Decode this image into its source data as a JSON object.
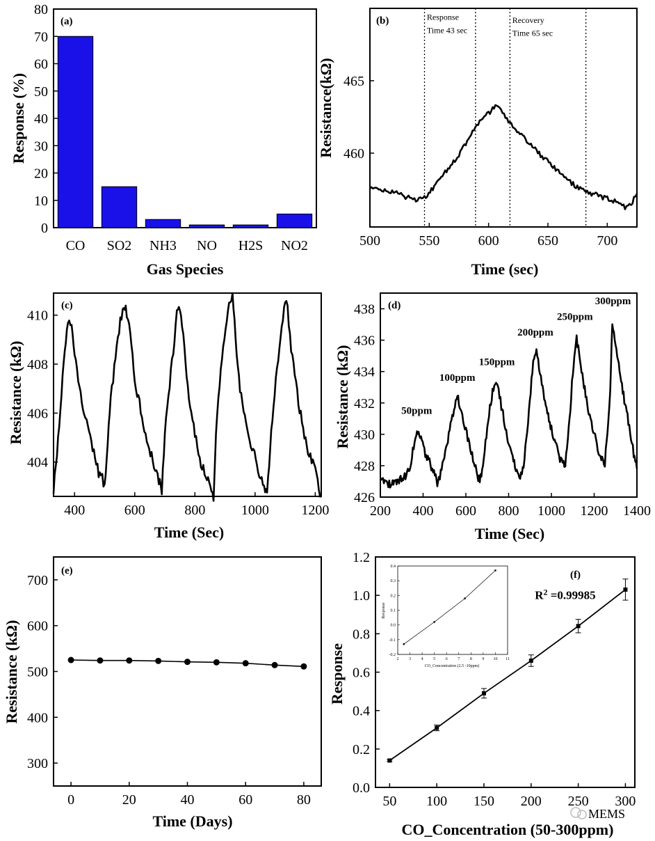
{
  "watermark": "MEMS",
  "chart_data": [
    {
      "panel": "(a)",
      "type": "bar",
      "categories": [
        "CO",
        "SO2",
        "NH3",
        "NO",
        "H2S",
        "NO2"
      ],
      "values": [
        70,
        15,
        3,
        1,
        1,
        5
      ],
      "xlabel": "Gas Species",
      "ylabel": "Response (%)",
      "ylim": [
        0,
        80
      ],
      "yticks": [
        0,
        10,
        20,
        30,
        40,
        50,
        60,
        70,
        80
      ],
      "bar_color": "#1a10e8"
    },
    {
      "panel": "(b)",
      "type": "line",
      "xlabel": "Time (sec)",
      "ylabel": "Resistance(kΩ)",
      "xlim": [
        500,
        725
      ],
      "ylim": [
        454.9,
        470.0
      ],
      "xticks": [
        500,
        550,
        600,
        650,
        700
      ],
      "yticks": [
        460,
        465
      ],
      "series": [
        {
          "x": [
            500,
            510,
            520,
            530,
            540,
            546,
            560,
            575,
            590,
            600,
            608,
            618,
            630,
            645,
            660,
            670,
            682,
            695,
            705,
            715,
            720,
            725
          ],
          "y": [
            457.6,
            457.5,
            457.3,
            457.0,
            456.7,
            456.9,
            458.3,
            459.9,
            461.9,
            462.8,
            463.3,
            462.0,
            461.0,
            459.8,
            458.6,
            457.9,
            457.3,
            457.0,
            456.7,
            456.3,
            456.5,
            457.2
          ]
        }
      ],
      "vlines": [
        546,
        589,
        618,
        682
      ],
      "annotations": [
        {
          "text": "Response",
          "x": 548,
          "y": 469.2
        },
        {
          "text": "Time 43 sec",
          "x": 548,
          "y": 468.3
        },
        {
          "text": "Recovery",
          "x": 620,
          "y": 469.0
        },
        {
          "text": "Time 65 sec",
          "x": 620,
          "y": 468.1
        }
      ]
    },
    {
      "panel": "(c)",
      "type": "line",
      "xlabel": "Time (Sec)",
      "ylabel": "Resistance (kΩ)",
      "xlim": [
        330,
        1220
      ],
      "ylim": [
        402.6,
        410.9
      ],
      "xticks": [
        400,
        600,
        800,
        1000,
        1200
      ],
      "yticks": [
        404,
        406,
        408,
        410
      ],
      "series": [
        {
          "x": [
            330,
            345,
            360,
            378,
            390,
            400,
            420,
            440,
            460,
            480,
            500,
            510,
            520,
            540,
            560,
            570,
            585,
            600,
            620,
            640,
            660,
            680,
            690,
            700,
            720,
            740,
            750,
            765,
            780,
            800,
            820,
            840,
            855,
            862,
            870,
            890,
            910,
            925,
            935,
            950,
            970,
            990,
            1010,
            1030,
            1040,
            1050,
            1065,
            1085,
            1100,
            1108,
            1120,
            1140,
            1160,
            1180,
            1200,
            1212,
            1220
          ],
          "y": [
            402.8,
            405.0,
            407.5,
            409.7,
            409.5,
            408.3,
            406.8,
            405.6,
            404.5,
            403.6,
            403.1,
            404.9,
            406.5,
            408.9,
            410.3,
            410.2,
            409.2,
            407.3,
            406.1,
            405.0,
            404.0,
            403.2,
            402.9,
            405.2,
            407.7,
            410.0,
            410.2,
            408.8,
            406.5,
            405.1,
            404.0,
            403.4,
            402.8,
            402.6,
            405.2,
            408.4,
            410.2,
            410.8,
            409.0,
            407.0,
            405.6,
            404.6,
            403.7,
            403.0,
            402.8,
            404.6,
            406.9,
            409.2,
            410.5,
            410.3,
            408.6,
            406.8,
            405.3,
            404.3,
            403.7,
            402.9,
            402.6
          ]
        }
      ]
    },
    {
      "panel": "(d)",
      "type": "line",
      "xlabel": "Time (Sec)",
      "ylabel": "Resistance (kΩ)",
      "xlim": [
        200,
        1400
      ],
      "ylim": [
        426,
        439
      ],
      "xticks": [
        200,
        400,
        600,
        800,
        1000,
        1200,
        1400
      ],
      "yticks": [
        426,
        428,
        430,
        432,
        434,
        436,
        438
      ],
      "series": [
        {
          "x": [
            200,
            225,
            250,
            280,
            310,
            340,
            360,
            375,
            390,
            410,
            430,
            455,
            470,
            495,
            520,
            545,
            560,
            575,
            600,
            625,
            650,
            665,
            680,
            700,
            725,
            745,
            770,
            800,
            830,
            850,
            870,
            895,
            915,
            930,
            955,
            985,
            1015,
            1040,
            1065,
            1085,
            1100,
            1118,
            1145,
            1175,
            1200,
            1225,
            1250,
            1275,
            1285,
            1300,
            1330,
            1360,
            1385,
            1400
          ],
          "y": [
            427.0,
            426.9,
            426.8,
            427.0,
            427.2,
            428.0,
            429.5,
            430.2,
            429.7,
            428.8,
            428.2,
            427.4,
            426.8,
            428.2,
            430.0,
            431.7,
            432.4,
            431.8,
            430.2,
            428.8,
            427.6,
            427.0,
            428.0,
            430.5,
            432.8,
            433.4,
            431.5,
            429.5,
            428.0,
            427.2,
            428.0,
            431.5,
            434.8,
            435.2,
            433.2,
            431.2,
            429.6,
            428.4,
            428.0,
            431.0,
            434.0,
            436.1,
            433.8,
            431.4,
            430.0,
            428.6,
            428.2,
            432.5,
            437.2,
            435.6,
            433.0,
            430.8,
            428.8,
            427.8
          ]
        }
      ],
      "labels": [
        {
          "text": "50ppm",
          "x": 370,
          "y": 431.3
        },
        {
          "text": "100ppm",
          "x": 560,
          "y": 433.4
        },
        {
          "text": "150ppm",
          "x": 745,
          "y": 434.4
        },
        {
          "text": "200ppm",
          "x": 925,
          "y": 436.3
        },
        {
          "text": "250ppm",
          "x": 1110,
          "y": 437.3
        },
        {
          "text": "300ppm",
          "x": 1288,
          "y": 438.3
        }
      ]
    },
    {
      "panel": "(e)",
      "type": "line",
      "xlabel": "Time (Days)",
      "ylabel": "Resistance (kΩ)",
      "xlim": [
        -6,
        86
      ],
      "ylim": [
        250,
        750
      ],
      "xticks": [
        0,
        20,
        40,
        60,
        80
      ],
      "yticks": [
        300,
        400,
        500,
        600,
        700
      ],
      "series": [
        {
          "x": [
            0,
            10,
            20,
            30,
            40,
            50,
            60,
            70,
            80
          ],
          "y": [
            525,
            524,
            524,
            523,
            521,
            520,
            518,
            514,
            511
          ]
        }
      ]
    },
    {
      "panel": "(f)",
      "type": "line",
      "xlabel": "CO_Concentration (50-300ppm)",
      "ylabel": "Response",
      "xlim": [
        35,
        310
      ],
      "ylim": [
        0,
        1.2
      ],
      "xticks": [
        50,
        100,
        150,
        200,
        250,
        300
      ],
      "yticks": [
        0.0,
        0.2,
        0.4,
        0.6,
        0.8,
        1.0,
        1.2
      ],
      "series": [
        {
          "x": [
            50,
            100,
            150,
            200,
            250,
            300
          ],
          "y": [
            0.14,
            0.31,
            0.49,
            0.66,
            0.84,
            1.03
          ],
          "err": [
            0.005,
            0.015,
            0.025,
            0.03,
            0.035,
            0.055
          ]
        }
      ],
      "annotation": {
        "text": "R",
        "sup": "2",
        "rest": " =0.99985",
        "x": 204,
        "y": 0.98
      },
      "inset": {
        "type": "line",
        "xlabel": "CO_Concentration (2.5 -10ppm)",
        "ylabel": "Response",
        "xlim": [
          2,
          11
        ],
        "ylim": [
          -0.2,
          0.4
        ],
        "xticks": [
          2,
          3,
          4,
          5,
          6,
          7,
          8,
          9,
          10,
          11
        ],
        "yticks": [
          -0.2,
          -0.1,
          0.0,
          0.1,
          0.2,
          0.3,
          0.4
        ],
        "series": [
          {
            "x": [
              2.5,
              5,
              7.5,
              10
            ],
            "y": [
              -0.13,
              0.02,
              0.18,
              0.37
            ]
          }
        ]
      }
    }
  ]
}
